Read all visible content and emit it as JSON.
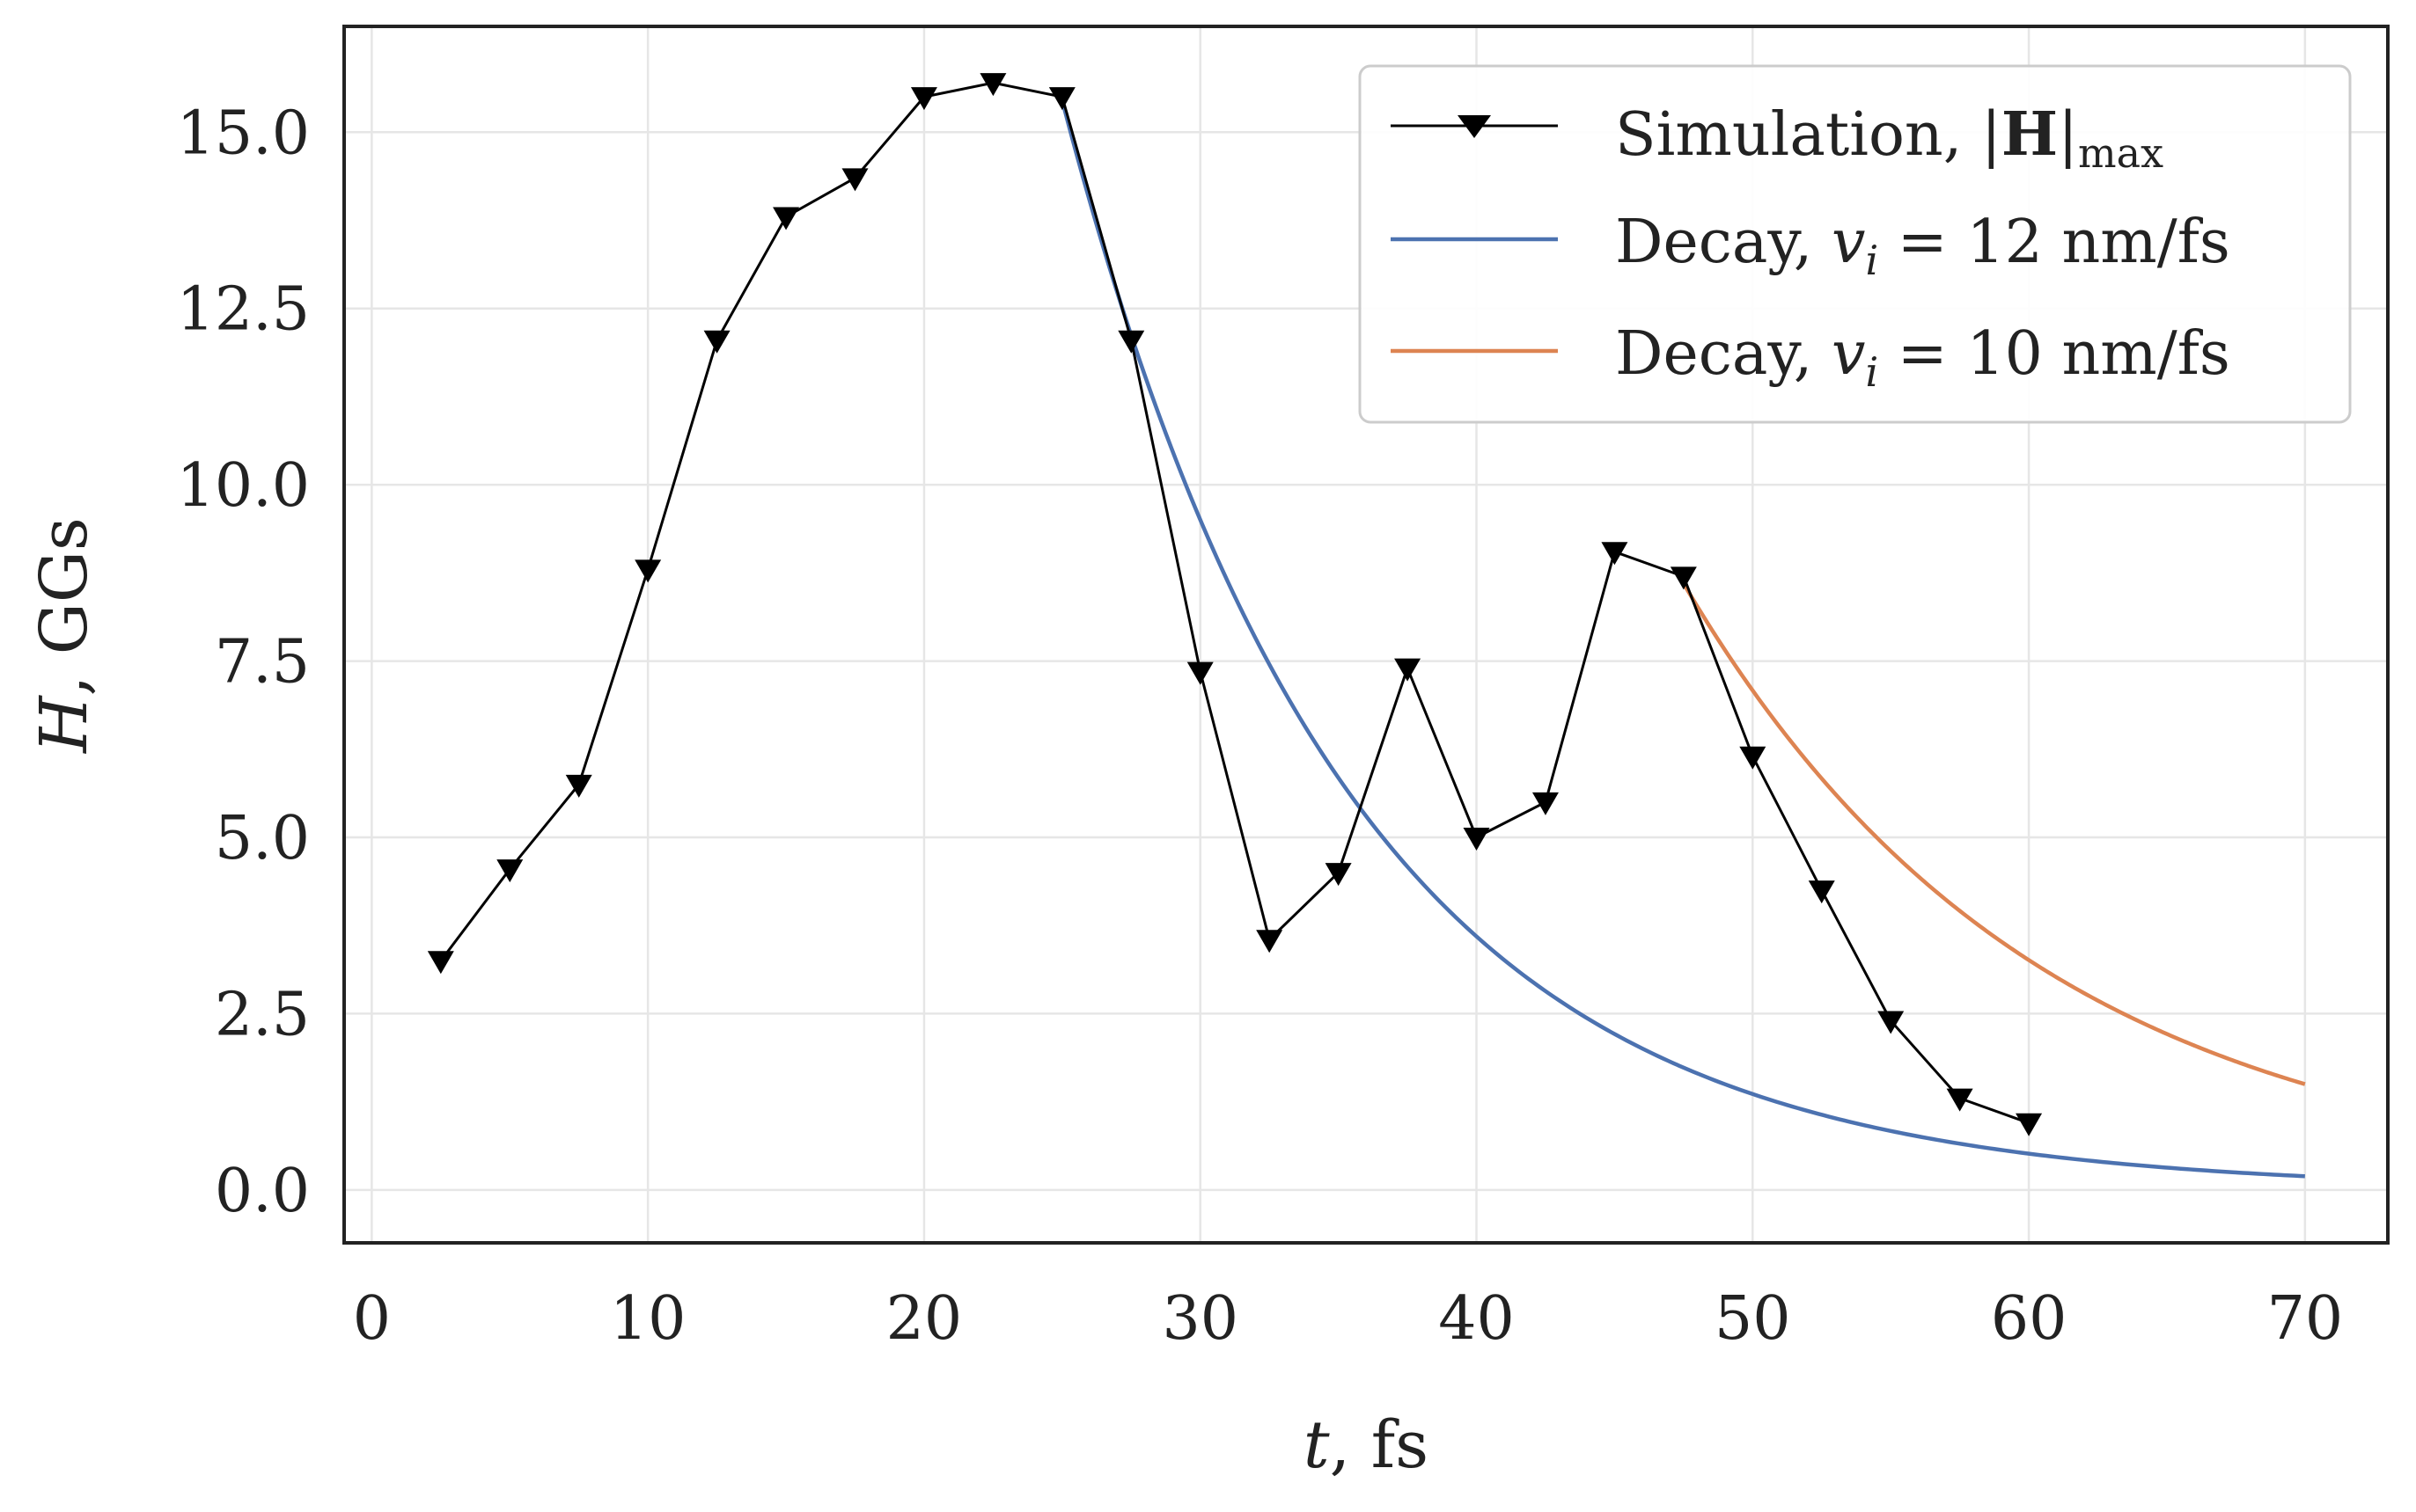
{
  "chart_data": {
    "type": "line",
    "xlabel": {
      "var": "t",
      "rest": ", fs"
    },
    "ylabel": {
      "var": "H",
      "rest": ", GGs"
    },
    "xlim": [
      -1,
      73
    ],
    "ylim": [
      -0.75,
      16.5
    ],
    "x_ticks": [
      0,
      10,
      20,
      30,
      40,
      50,
      60,
      70
    ],
    "x_tick_labels": [
      "0",
      "10",
      "20",
      "30",
      "40",
      "50",
      "60",
      "70"
    ],
    "y_ticks": [
      0,
      2.5,
      5,
      7.5,
      10,
      12.5,
      15
    ],
    "y_tick_labels": [
      "0.0",
      "2.5",
      "5.0",
      "7.5",
      "10.0",
      "12.5",
      "15.0"
    ],
    "grid": true,
    "legend_position": "top-right",
    "series": [
      {
        "name": "Simulation, |H|max",
        "legend": {
          "main": "Simulation, |",
          "bold": "H",
          "close": "|",
          "sub": "max"
        },
        "color": "#000000",
        "marker": "triangle-down",
        "x": [
          2.5,
          5,
          7.5,
          10,
          12.5,
          15,
          17.5,
          20,
          22.5,
          25,
          27.5,
          30,
          32.5,
          35,
          37.5,
          40,
          42.5,
          45,
          47.5,
          50,
          52.5,
          55,
          57.5,
          60
        ],
        "y": [
          3.25,
          4.55,
          5.75,
          8.8,
          12.05,
          13.8,
          14.35,
          15.5,
          15.7,
          15.5,
          12.05,
          7.35,
          3.55,
          4.5,
          7.4,
          5.0,
          5.5,
          9.05,
          8.7,
          6.15,
          4.25,
          2.4,
          1.3,
          0.95
        ]
      },
      {
        "name": "Decay, vi = 12 nm/fs",
        "legend": {
          "main": "Decay, ",
          "var": "v",
          "sub": "i",
          "rest": " = 12 nm/fs"
        },
        "color": "#4c72b0",
        "x_start": 25,
        "y_start": 15.45,
        "x_end": 70,
        "decay_rate": 0.0972
      },
      {
        "name": "Decay, vi = 10 nm/fs",
        "legend": {
          "main": "Decay, ",
          "var": "v",
          "sub": "i",
          "rest": " = 10 nm/fs"
        },
        "color": "#dd8452",
        "x_start": 47.5,
        "y_start": 8.6,
        "x_end": 70,
        "decay_rate": 0.0776
      }
    ]
  }
}
